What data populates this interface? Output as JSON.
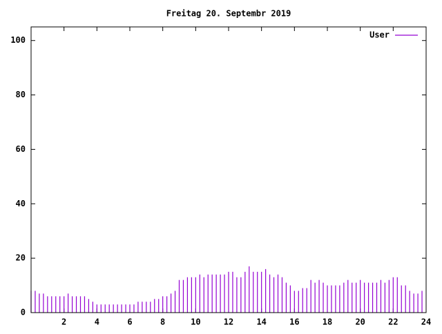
{
  "chart_data": {
    "type": "impulses",
    "title": "Freitag 20. Septembr 2019",
    "x": [
      0,
      0.25,
      0.5,
      0.75,
      1,
      1.25,
      1.5,
      1.75,
      2,
      2.25,
      2.5,
      2.75,
      3,
      3.25,
      3.5,
      3.75,
      4,
      4.25,
      4.5,
      4.75,
      5,
      5.25,
      5.5,
      5.75,
      6,
      6.25,
      6.5,
      6.75,
      7,
      7.25,
      7.5,
      7.75,
      8,
      8.25,
      8.5,
      8.75,
      9,
      9.25,
      9.5,
      9.75,
      10,
      10.25,
      10.5,
      10.75,
      11,
      11.25,
      11.5,
      11.75,
      12,
      12.25,
      12.5,
      12.75,
      13,
      13.25,
      13.5,
      13.75,
      14,
      14.25,
      14.5,
      14.75,
      15,
      15.25,
      15.5,
      15.75,
      16,
      16.25,
      16.5,
      16.75,
      17,
      17.25,
      17.5,
      17.75,
      18,
      18.25,
      18.5,
      18.75,
      19,
      19.25,
      19.5,
      19.75,
      20,
      20.25,
      20.5,
      20.75,
      21,
      21.25,
      21.5,
      21.75,
      22,
      22.25,
      22.5,
      22.75,
      23,
      23.25,
      23.5,
      23.75
    ],
    "series": [
      {
        "name": "User",
        "color": "#9400d3",
        "values": [
          8,
          8,
          7,
          7,
          6,
          6,
          6,
          6,
          6,
          7,
          6,
          6,
          6,
          6,
          5,
          4,
          3,
          3,
          3,
          3,
          3,
          3,
          3,
          3,
          3,
          3,
          4,
          4,
          4,
          4,
          5,
          5,
          6,
          6,
          7,
          8,
          12,
          12,
          13,
          13,
          13,
          14,
          13,
          14,
          14,
          14,
          14,
          14,
          15,
          15,
          13,
          13,
          15,
          17,
          15,
          15,
          15,
          16,
          14,
          13,
          14,
          13,
          11,
          10,
          8,
          8,
          9,
          9,
          12,
          11,
          12,
          11,
          10,
          10,
          10,
          10,
          11,
          12,
          11,
          11,
          12,
          11,
          11,
          11,
          11,
          12,
          11,
          12,
          13,
          13,
          10,
          10,
          8,
          7,
          7,
          8
        ]
      }
    ],
    "xlim": [
      0,
      24
    ],
    "xticks": [
      2,
      4,
      6,
      8,
      10,
      12,
      14,
      16,
      18,
      20,
      22,
      24
    ],
    "ylim": [
      0,
      105
    ],
    "yticks": [
      0,
      20,
      40,
      60,
      80,
      100
    ],
    "legend": "top right"
  }
}
